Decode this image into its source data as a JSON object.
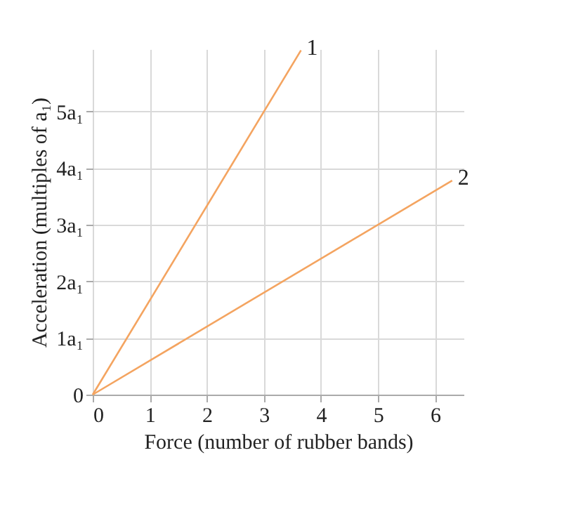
{
  "chart_data": {
    "type": "line",
    "xlabel": "Force (number of rubber bands)",
    "ylabel": "Acceleration (multiples of a₁)",
    "xlim": [
      0,
      6.5
    ],
    "xticks": [
      0,
      1,
      2,
      3,
      4,
      5,
      6
    ],
    "ylim": [
      0,
      6.1
    ],
    "yticks": [
      0,
      {
        "value": 1,
        "label": "1a₁"
      },
      {
        "value": 2,
        "label": "2a₁"
      },
      {
        "value": 3,
        "label": "3a₁"
      },
      {
        "value": 4,
        "label": "4a₁"
      },
      {
        "value": 5,
        "label": "5a₁"
      }
    ],
    "grid": true,
    "series": [
      {
        "name": "1",
        "color": "#f4a460",
        "x": [
          0,
          3.65
        ],
        "values": [
          0,
          6.08
        ]
      },
      {
        "name": "2",
        "color": "#f4a460",
        "x": [
          0,
          6.3
        ],
        "values": [
          0,
          3.78
        ]
      }
    ]
  }
}
